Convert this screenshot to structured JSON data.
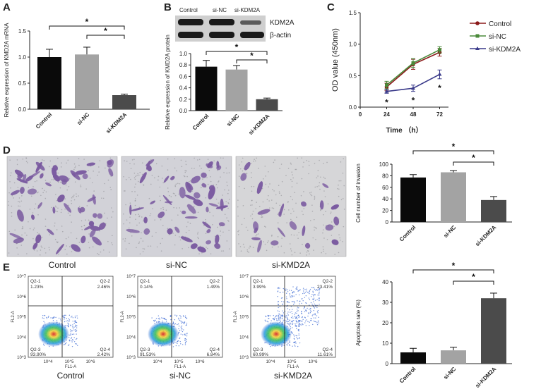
{
  "panels": {
    "A": "A",
    "B": "B",
    "C": "C",
    "D": "D",
    "E": "E"
  },
  "significance": "*",
  "colors": {
    "control": "#0a0a0a",
    "sinc": "#a3a3a3",
    "sikdm2a": "#4b4b4b",
    "line_control": "#8b1a1a",
    "line_sinc": "#4a8a3a",
    "line_sikdm2a": "#3a3a8a",
    "cell_stain": "#7a5aa0"
  },
  "western_blot": {
    "lanes": [
      "Control",
      "si-NC",
      "si-KDM2A"
    ],
    "band_labels": [
      "KDM2A",
      "β-actin"
    ]
  },
  "micrographs": {
    "captions": [
      "Control",
      "si-NC",
      "si-KMD2A"
    ]
  },
  "flow": {
    "captions": [
      "Control",
      "si-NC",
      "si-KMD2A"
    ],
    "x_axis_label": "FL1-A",
    "y_axis_label": "FL2-A",
    "axis_ticks": [
      "10^3",
      "10^4",
      "10^5",
      "10^6",
      "10^7"
    ],
    "quadrants": [
      {
        "q1": "Q2-1",
        "v1": "1.23%",
        "q2": "Q2-2",
        "v2": "2.46%",
        "q3": "Q2-3",
        "v3": "93.90%",
        "q4": "Q2-4",
        "v4": "2.42%"
      },
      {
        "q1": "Q2-1",
        "v1": "0.14%",
        "q2": "Q2-2",
        "v2": "1.49%",
        "q3": "Q2-3",
        "v3": "91.53%",
        "q4": "Q2-4",
        "v4": "6.84%"
      },
      {
        "q1": "Q2-1",
        "v1": "3.99%",
        "q2": "Q2-2",
        "v2": "23.41%",
        "q3": "Q2-3",
        "v3": "60.99%",
        "q4": "Q2-4",
        "v4": "11.61%"
      }
    ]
  },
  "chart_data": [
    {
      "id": "A",
      "type": "bar",
      "categories": [
        "Control",
        "si-NC",
        "si-KDM2A"
      ],
      "values": [
        1.0,
        1.05,
        0.27
      ],
      "errors": [
        0.15,
        0.14,
        0.02
      ],
      "ylabel": "Relative expression of KMD2A mRNA",
      "ylim": [
        0,
        1.5
      ],
      "yticks": [
        "0.0",
        "0.5",
        "1.0",
        "1.5"
      ]
    },
    {
      "id": "B",
      "type": "bar",
      "categories": [
        "Control",
        "si-NC",
        "si-KDM2A"
      ],
      "values": [
        0.77,
        0.72,
        0.2
      ],
      "errors": [
        0.11,
        0.07,
        0.02
      ],
      "ylabel": "Relative expression of KMD2A protein",
      "ylim": [
        0,
        1.0
      ],
      "yticks": [
        "0.0",
        "0.2",
        "0.4",
        "0.6",
        "0.8",
        "1.0"
      ]
    },
    {
      "id": "C",
      "type": "line",
      "x": [
        24,
        48,
        72
      ],
      "series": [
        {
          "name": "Control",
          "values": [
            0.32,
            0.68,
            0.87
          ],
          "errors": [
            0.06,
            0.08,
            0.06
          ]
        },
        {
          "name": "si-NC",
          "values": [
            0.35,
            0.7,
            0.91
          ],
          "errors": [
            0.06,
            0.07,
            0.05
          ]
        },
        {
          "name": "si-KDM2A",
          "values": [
            0.25,
            0.3,
            0.52
          ],
          "errors": [
            0.03,
            0.05,
            0.07
          ]
        }
      ],
      "xlabel": "Time （h）",
      "ylabel": "OD  value  (450nm)",
      "xlim": [
        0,
        80
      ],
      "ylim": [
        0,
        1.5
      ],
      "xticks": [
        "0",
        "24",
        "48",
        "72"
      ],
      "yticks": [
        "0.0",
        "0.5",
        "1.0",
        "1.5"
      ],
      "annotations": [
        "*",
        "*",
        "*"
      ]
    },
    {
      "id": "D",
      "type": "bar",
      "categories": [
        "Control",
        "si-NC",
        "si-KDM2A"
      ],
      "values": [
        77,
        86,
        38
      ],
      "errors": [
        5,
        3,
        6
      ],
      "ylabel": "Cell number of invasion",
      "ylim": [
        0,
        100
      ],
      "yticks": [
        "0",
        "20",
        "40",
        "60",
        "80",
        "100"
      ]
    },
    {
      "id": "E",
      "type": "bar",
      "categories": [
        "Control",
        "si-NC",
        "si-KDM2A"
      ],
      "values": [
        5.5,
        6.5,
        32
      ],
      "errors": [
        2.0,
        1.5,
        2.5
      ],
      "ylabel": "Apoptosis rate (%)",
      "ylim": [
        0,
        40
      ],
      "yticks": [
        "0",
        "10",
        "20",
        "30",
        "40"
      ]
    }
  ]
}
